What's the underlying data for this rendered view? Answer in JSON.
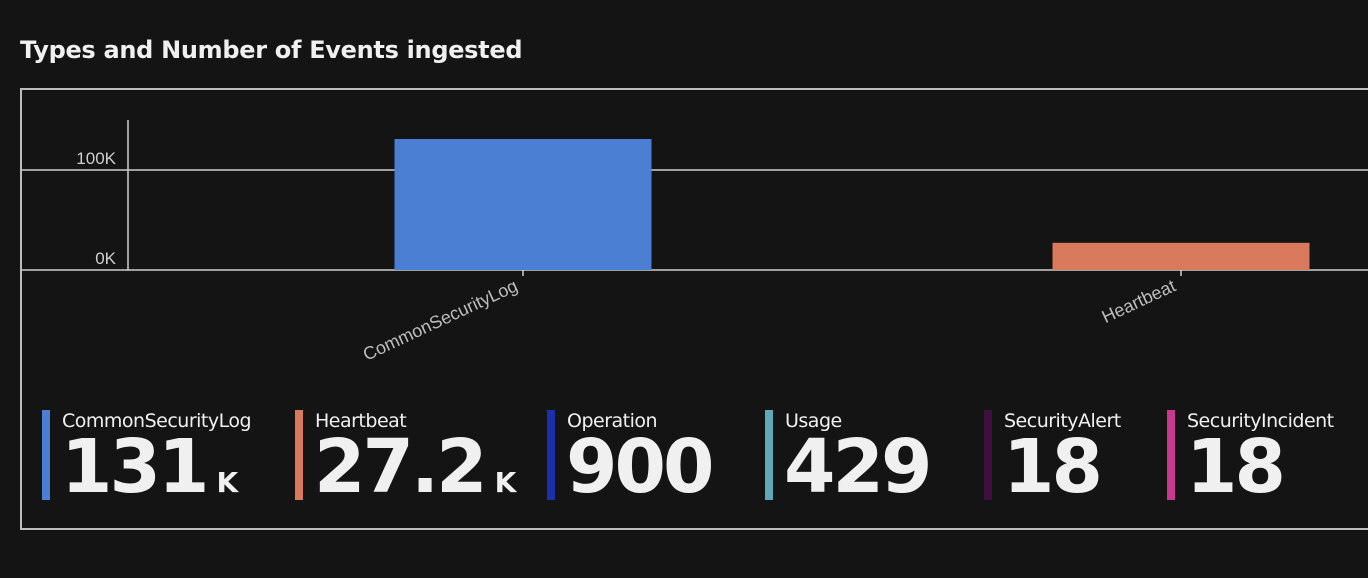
{
  "header": {
    "title": "Types and Number of Events ingested"
  },
  "chart_data": {
    "type": "bar",
    "title": "Types and Number of Events ingested",
    "categories": [
      "CommonSecurityLog",
      "Heartbeat"
    ],
    "values": [
      131000,
      27200
    ],
    "colors": [
      "#4a7fd4",
      "#d97a5c"
    ],
    "yticks": [
      {
        "value": 0,
        "label": "0K"
      },
      {
        "value": 100000,
        "label": "100K"
      }
    ],
    "ylim": [
      0,
      150000
    ],
    "grid": true,
    "xlabel": "",
    "ylabel": ""
  },
  "legend_tiles": [
    {
      "name": "CommonSecurityLog",
      "value": "131",
      "unit": "K",
      "color": "#4a7fd4"
    },
    {
      "name": "Heartbeat",
      "value": "27.2",
      "unit": "K",
      "color": "#d97a5c"
    },
    {
      "name": "Operation",
      "value": "900",
      "unit": "",
      "color": "#1a2fa8"
    },
    {
      "name": "Usage",
      "value": "429",
      "unit": "",
      "color": "#5fa8b8"
    },
    {
      "name": "SecurityAlert",
      "value": "18",
      "unit": "",
      "color": "#3d1040"
    },
    {
      "name": "SecurityIncident",
      "value": "18",
      "unit": "",
      "color": "#c8388e"
    }
  ]
}
